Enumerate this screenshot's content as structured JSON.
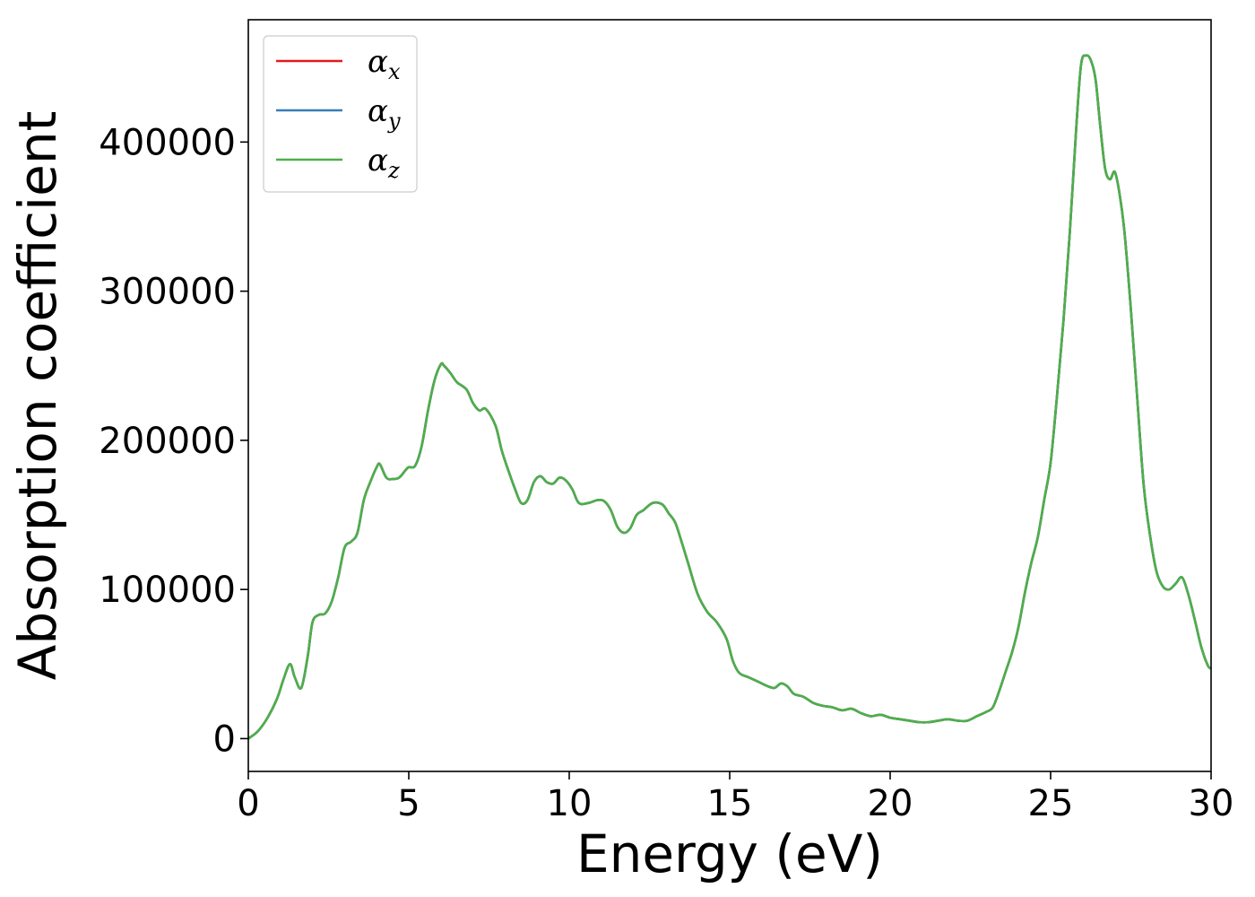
{
  "chart_data": {
    "type": "line",
    "xlabel": "Energy (eV)",
    "ylabel": "Absorption coefficient",
    "xlim": [
      0,
      30
    ],
    "ylim": [
      -22000,
      482000
    ],
    "xticks": [
      0,
      5,
      10,
      15,
      20,
      25,
      30
    ],
    "yticks": [
      0,
      100000,
      200000,
      300000,
      400000
    ],
    "xtick_labels": [
      "0",
      "5",
      "10",
      "15",
      "20",
      "25",
      "30"
    ],
    "ytick_labels": [
      "0",
      "100000",
      "200000",
      "300000",
      "400000"
    ],
    "grid": false,
    "legend_position": "top-left",
    "legend": [
      {
        "base": "α",
        "sub": "x",
        "color": "#e41a1c"
      },
      {
        "base": "α",
        "sub": "y",
        "color": "#377eb8"
      },
      {
        "base": "α",
        "sub": "z",
        "color": "#4daf4a"
      }
    ],
    "x": [
      0,
      0.3,
      0.6,
      0.9,
      1.1,
      1.3,
      1.45,
      1.65,
      1.85,
      2.0,
      2.2,
      2.4,
      2.6,
      2.8,
      3.0,
      3.2,
      3.4,
      3.6,
      3.8,
      4.0,
      4.1,
      4.3,
      4.5,
      4.7,
      4.9,
      5.0,
      5.2,
      5.4,
      5.6,
      5.8,
      6.0,
      6.1,
      6.3,
      6.5,
      6.8,
      7.0,
      7.2,
      7.4,
      7.7,
      7.9,
      8.1,
      8.3,
      8.5,
      8.7,
      8.9,
      9.1,
      9.3,
      9.5,
      9.7,
      9.9,
      10.1,
      10.3,
      10.6,
      10.9,
      11.1,
      11.3,
      11.5,
      11.7,
      11.9,
      12.1,
      12.3,
      12.6,
      12.9,
      13.1,
      13.3,
      13.5,
      13.7,
      14.0,
      14.3,
      14.6,
      14.9,
      15.1,
      15.3,
      15.6,
      15.9,
      16.2,
      16.4,
      16.6,
      16.8,
      17.0,
      17.3,
      17.6,
      17.9,
      18.2,
      18.5,
      18.8,
      19.1,
      19.4,
      19.7,
      20.0,
      20.3,
      20.6,
      20.9,
      21.2,
      21.5,
      21.8,
      22.1,
      22.4,
      22.7,
      23.0,
      23.2,
      23.4,
      23.6,
      23.8,
      24.0,
      24.2,
      24.4,
      24.6,
      24.8,
      25.0,
      25.2,
      25.4,
      25.6,
      25.8,
      25.95,
      26.1,
      26.25,
      26.4,
      26.55,
      26.7,
      26.85,
      27.0,
      27.15,
      27.3,
      27.5,
      27.7,
      27.9,
      28.1,
      28.3,
      28.5,
      28.7,
      28.9,
      29.1,
      29.3,
      29.5,
      29.7,
      29.9,
      30.0
    ],
    "series": [
      {
        "name": "α_x",
        "color": "#e41a1c",
        "values": [
          0,
          5000,
          14000,
          27000,
          40000,
          50000,
          41000,
          34000,
          55000,
          78000,
          83000,
          84000,
          92000,
          108000,
          128000,
          132000,
          138000,
          160000,
          172000,
          182000,
          184000,
          175000,
          174000,
          175000,
          180000,
          182000,
          183000,
          196000,
          220000,
          240000,
          251000,
          250000,
          245000,
          239000,
          234000,
          225000,
          220000,
          221000,
          210000,
          193000,
          180000,
          168000,
          158000,
          160000,
          172000,
          176000,
          172000,
          171000,
          175000,
          173000,
          167000,
          158000,
          158000,
          160000,
          159000,
          153000,
          142000,
          138000,
          141000,
          150000,
          153000,
          158000,
          157000,
          151000,
          145000,
          132000,
          118000,
          97000,
          85000,
          78000,
          67000,
          52000,
          44000,
          41000,
          38000,
          35000,
          34000,
          37000,
          35000,
          30000,
          28000,
          24000,
          22000,
          21000,
          19000,
          20000,
          17000,
          15000,
          16000,
          14000,
          13000,
          12000,
          11000,
          11000,
          12000,
          13000,
          12000,
          12000,
          15000,
          18000,
          21000,
          32000,
          45000,
          58000,
          75000,
          98000,
          118000,
          135000,
          160000,
          185000,
          230000,
          280000,
          340000,
          410000,
          452000,
          458000,
          455000,
          442000,
          410000,
          382000,
          375000,
          380000,
          365000,
          340000,
          288000,
          228000,
          170000,
          136000,
          112000,
          102000,
          100000,
          104000,
          108000,
          96000,
          79000,
          61000,
          49000,
          47000
        ]
      },
      {
        "name": "α_y",
        "color": "#377eb8",
        "values": [
          0,
          5000,
          14000,
          27000,
          40000,
          50000,
          41000,
          34000,
          55000,
          78000,
          83000,
          84000,
          92000,
          108000,
          128000,
          132000,
          138000,
          160000,
          172000,
          182000,
          184000,
          175000,
          174000,
          175000,
          180000,
          182000,
          183000,
          196000,
          220000,
          240000,
          251000,
          250000,
          245000,
          239000,
          234000,
          225000,
          220000,
          221000,
          210000,
          193000,
          180000,
          168000,
          158000,
          160000,
          172000,
          176000,
          172000,
          171000,
          175000,
          173000,
          167000,
          158000,
          158000,
          160000,
          159000,
          153000,
          142000,
          138000,
          141000,
          150000,
          153000,
          158000,
          157000,
          151000,
          145000,
          132000,
          118000,
          97000,
          85000,
          78000,
          67000,
          52000,
          44000,
          41000,
          38000,
          35000,
          34000,
          37000,
          35000,
          30000,
          28000,
          24000,
          22000,
          21000,
          19000,
          20000,
          17000,
          15000,
          16000,
          14000,
          13000,
          12000,
          11000,
          11000,
          12000,
          13000,
          12000,
          12000,
          15000,
          18000,
          21000,
          32000,
          45000,
          58000,
          75000,
          98000,
          118000,
          135000,
          160000,
          185000,
          230000,
          280000,
          340000,
          410000,
          452000,
          458000,
          455000,
          442000,
          410000,
          382000,
          375000,
          380000,
          365000,
          340000,
          288000,
          228000,
          170000,
          136000,
          112000,
          102000,
          100000,
          104000,
          108000,
          96000,
          79000,
          61000,
          49000,
          47000
        ]
      },
      {
        "name": "α_z",
        "color": "#4daf4a",
        "values": [
          0,
          5000,
          14000,
          27000,
          40000,
          50000,
          41000,
          34000,
          55000,
          78000,
          83000,
          84000,
          92000,
          108000,
          128000,
          132000,
          138000,
          160000,
          172000,
          182000,
          184000,
          175000,
          174000,
          175000,
          180000,
          182000,
          183000,
          196000,
          220000,
          240000,
          251000,
          250000,
          245000,
          239000,
          234000,
          225000,
          220000,
          221000,
          210000,
          193000,
          180000,
          168000,
          158000,
          160000,
          172000,
          176000,
          172000,
          171000,
          175000,
          173000,
          167000,
          158000,
          158000,
          160000,
          159000,
          153000,
          142000,
          138000,
          141000,
          150000,
          153000,
          158000,
          157000,
          151000,
          145000,
          132000,
          118000,
          97000,
          85000,
          78000,
          67000,
          52000,
          44000,
          41000,
          38000,
          35000,
          34000,
          37000,
          35000,
          30000,
          28000,
          24000,
          22000,
          21000,
          19000,
          20000,
          17000,
          15000,
          16000,
          14000,
          13000,
          12000,
          11000,
          11000,
          12000,
          13000,
          12000,
          12000,
          15000,
          18000,
          21000,
          32000,
          45000,
          58000,
          75000,
          98000,
          118000,
          135000,
          160000,
          185000,
          230000,
          280000,
          340000,
          410000,
          452000,
          458000,
          455000,
          442000,
          410000,
          382000,
          375000,
          380000,
          365000,
          340000,
          288000,
          228000,
          170000,
          136000,
          112000,
          102000,
          100000,
          104000,
          108000,
          96000,
          79000,
          61000,
          49000,
          47000
        ]
      }
    ]
  }
}
